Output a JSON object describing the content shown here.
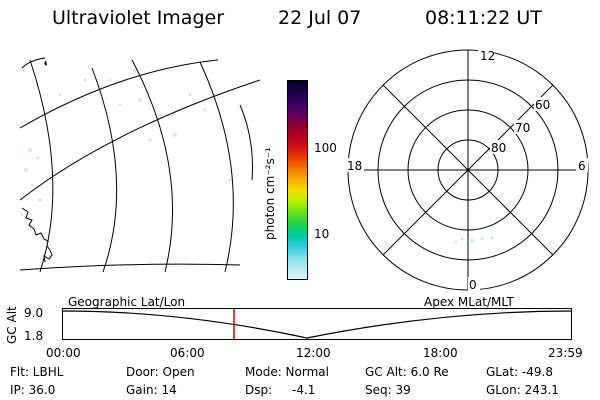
{
  "header": {
    "title": "Ultraviolet Imager",
    "date": "22 Jul 07",
    "time": "08:11:22 UT"
  },
  "colorbar": {
    "units_label": "photon cm⁻²s⁻¹",
    "ticks": [
      "100",
      "10"
    ],
    "colors": [
      "#000030",
      "#1a0045",
      "#3b0060",
      "#5c0060",
      "#8a0035",
      "#b0001a",
      "#d0101a",
      "#e84000",
      "#f07800",
      "#f8b000",
      "#f0e000",
      "#b8f000",
      "#60e020",
      "#20d050",
      "#00c8a0",
      "#30c8d8",
      "#80dce8",
      "#b8eaf0",
      "#e0f6f8"
    ]
  },
  "polar": {
    "labels": {
      "top": "12",
      "left": "18",
      "right": "6",
      "bottom": "0"
    },
    "latitudes": [
      "60",
      "70",
      "80"
    ]
  },
  "timeline": {
    "left_label": "Geographic Lat/Lon",
    "right_label": "Apex MLat/MLT",
    "axis_title": "GC Alt",
    "y_ticks": [
      "9.0",
      "1.8"
    ],
    "x_ticks": [
      "00:00",
      "06:00",
      "12:00",
      "18:00",
      "23:59"
    ]
  },
  "info": {
    "r1": {
      "a": "Flt: LBHL",
      "b": "Door: Open",
      "c": "Mode: Normal",
      "d": "GC Alt: 6.0 Re",
      "e": "GLat: -49.8"
    },
    "r2": {
      "a": "IP: 36.0",
      "b": "Gain: 14",
      "c": "Dsp:",
      "c2": "-4.1",
      "d": "Seq: 39",
      "e": "GLon: 243.1"
    }
  }
}
